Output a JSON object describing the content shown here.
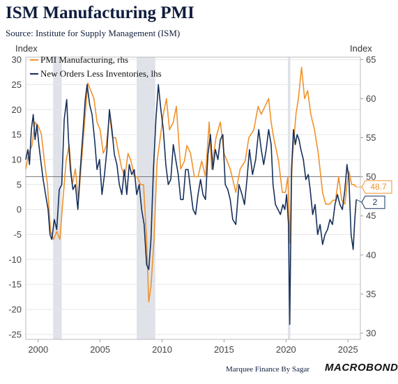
{
  "title": "ISM Manufacturing PMI",
  "subtitle": "Source: Institute for Supply Management (ISM)",
  "footer": {
    "credit": "Marquee Finance By Sagar",
    "brand": "MACROBOND"
  },
  "chart_data": {
    "type": "line",
    "left_axis": {
      "label": "Index",
      "range": [
        -26,
        30.5
      ],
      "ticks": [
        -25,
        -20,
        -15,
        -10,
        -5,
        0,
        5,
        10,
        15,
        20,
        25,
        30
      ]
    },
    "right_axis": {
      "label": "Index",
      "range": [
        29.2,
        65.3
      ],
      "ticks": [
        30,
        35,
        40,
        45,
        50,
        55,
        60,
        65
      ]
    },
    "x_axis": {
      "range": [
        1999.0,
        2026.0
      ],
      "ticks": [
        2000,
        2005,
        2010,
        2015,
        2020,
        2025
      ]
    },
    "reference_line": {
      "axis": "right",
      "value": 50
    },
    "recessions": [
      [
        2001.2,
        2001.9
      ],
      [
        2007.95,
        2009.45
      ],
      [
        2020.15,
        2020.35
      ]
    ],
    "colors": {
      "pmi": "#f0922b",
      "new_orders": "#16305c",
      "recession": "#dfe2e8"
    },
    "legend": [
      "PMI Manufacturing, rhs",
      "New Orders Less Inventories, lhs"
    ],
    "series": [
      {
        "name": "PMI Manufacturing, rhs",
        "axis": "right",
        "points": [
          [
            1999.0,
            51
          ],
          [
            1999.25,
            53
          ],
          [
            1999.5,
            54
          ],
          [
            1999.75,
            57
          ],
          [
            2000.0,
            56.5
          ],
          [
            2000.25,
            55.5
          ],
          [
            2000.5,
            52
          ],
          [
            2000.75,
            49
          ],
          [
            2001.0,
            43
          ],
          [
            2001.25,
            42
          ],
          [
            2001.5,
            43
          ],
          [
            2001.75,
            42
          ],
          [
            2002.0,
            47
          ],
          [
            2002.25,
            52
          ],
          [
            2002.5,
            54
          ],
          [
            2002.75,
            49
          ],
          [
            2003.0,
            51
          ],
          [
            2003.25,
            47
          ],
          [
            2003.5,
            52
          ],
          [
            2003.75,
            57
          ],
          [
            2004.0,
            62
          ],
          [
            2004.25,
            61
          ],
          [
            2004.5,
            60
          ],
          [
            2004.75,
            57
          ],
          [
            2005.0,
            56
          ],
          [
            2005.25,
            53
          ],
          [
            2005.5,
            54
          ],
          [
            2005.75,
            58
          ],
          [
            2006.0,
            55
          ],
          [
            2006.25,
            55
          ],
          [
            2006.5,
            53
          ],
          [
            2006.75,
            51
          ],
          [
            2007.0,
            50
          ],
          [
            2007.25,
            53
          ],
          [
            2007.5,
            52
          ],
          [
            2007.75,
            50
          ],
          [
            2008.0,
            50
          ],
          [
            2008.25,
            49
          ],
          [
            2008.5,
            49
          ],
          [
            2008.75,
            42
          ],
          [
            2008.92,
            34
          ],
          [
            2009.1,
            36
          ],
          [
            2009.35,
            42
          ],
          [
            2009.6,
            52
          ],
          [
            2009.85,
            55
          ],
          [
            2010.1,
            58
          ],
          [
            2010.35,
            60
          ],
          [
            2010.6,
            56
          ],
          [
            2010.9,
            57
          ],
          [
            2011.15,
            59
          ],
          [
            2011.5,
            51
          ],
          [
            2011.8,
            52
          ],
          [
            2012.0,
            54
          ],
          [
            2012.3,
            53
          ],
          [
            2012.6,
            50
          ],
          [
            2012.9,
            50
          ],
          [
            2013.2,
            52
          ],
          [
            2013.5,
            50
          ],
          [
            2013.8,
            57
          ],
          [
            2014.0,
            51
          ],
          [
            2014.35,
            55
          ],
          [
            2014.7,
            57
          ],
          [
            2015.0,
            53
          ],
          [
            2015.5,
            51
          ],
          [
            2015.95,
            48
          ],
          [
            2016.3,
            51
          ],
          [
            2016.7,
            52
          ],
          [
            2017.0,
            55
          ],
          [
            2017.4,
            56
          ],
          [
            2017.75,
            59
          ],
          [
            2018.0,
            58
          ],
          [
            2018.3,
            59
          ],
          [
            2018.6,
            60
          ],
          [
            2018.8,
            57
          ],
          [
            2019.0,
            55
          ],
          [
            2019.4,
            52
          ],
          [
            2019.7,
            48
          ],
          [
            2019.95,
            48
          ],
          [
            2020.15,
            50
          ],
          [
            2020.3,
            41.5
          ],
          [
            2020.5,
            52
          ],
          [
            2020.8,
            58
          ],
          [
            2021.0,
            60
          ],
          [
            2021.25,
            64
          ],
          [
            2021.5,
            60
          ],
          [
            2021.75,
            61
          ],
          [
            2022.0,
            58
          ],
          [
            2022.3,
            56
          ],
          [
            2022.6,
            53
          ],
          [
            2022.95,
            48
          ],
          [
            2023.2,
            46.5
          ],
          [
            2023.5,
            46.5
          ],
          [
            2023.8,
            47
          ],
          [
            2024.0,
            47
          ],
          [
            2024.25,
            50
          ],
          [
            2024.5,
            47
          ],
          [
            2024.75,
            46.5
          ],
          [
            2024.92,
            49
          ],
          [
            2025.08,
            50.7
          ],
          [
            2025.3,
            49
          ],
          [
            2025.5,
            49
          ],
          [
            2025.67,
            48.7
          ]
        ]
      },
      {
        "name": "New Orders Less Inventories, lhs",
        "axis": "left",
        "points": [
          [
            1999.0,
            10
          ],
          [
            1999.17,
            12
          ],
          [
            1999.3,
            9
          ],
          [
            1999.45,
            16
          ],
          [
            1999.6,
            19
          ],
          [
            1999.75,
            14
          ],
          [
            1999.9,
            17
          ],
          [
            2000.05,
            13
          ],
          [
            2000.2,
            10
          ],
          [
            2000.4,
            6
          ],
          [
            2000.6,
            3
          ],
          [
            2000.8,
            0
          ],
          [
            2000.95,
            -5
          ],
          [
            2001.1,
            -6
          ],
          [
            2001.3,
            -2
          ],
          [
            2001.5,
            -4
          ],
          [
            2001.7,
            4
          ],
          [
            2001.9,
            5
          ],
          [
            2002.1,
            18
          ],
          [
            2002.3,
            22
          ],
          [
            2002.45,
            14
          ],
          [
            2002.6,
            8
          ],
          [
            2002.8,
            4
          ],
          [
            2003.0,
            5
          ],
          [
            2003.2,
            0
          ],
          [
            2003.4,
            8
          ],
          [
            2003.6,
            15
          ],
          [
            2003.8,
            22
          ],
          [
            2003.95,
            25
          ],
          [
            2004.15,
            21
          ],
          [
            2004.35,
            19
          ],
          [
            2004.55,
            14
          ],
          [
            2004.75,
            8
          ],
          [
            2004.95,
            10
          ],
          [
            2005.15,
            3
          ],
          [
            2005.35,
            7
          ],
          [
            2005.55,
            12
          ],
          [
            2005.75,
            20
          ],
          [
            2005.95,
            16
          ],
          [
            2006.15,
            11
          ],
          [
            2006.35,
            9
          ],
          [
            2006.55,
            5
          ],
          [
            2006.75,
            3
          ],
          [
            2006.95,
            8
          ],
          [
            2007.15,
            3
          ],
          [
            2007.35,
            9
          ],
          [
            2007.55,
            7
          ],
          [
            2007.75,
            8
          ],
          [
            2007.95,
            3
          ],
          [
            2008.15,
            5
          ],
          [
            2008.35,
            0
          ],
          [
            2008.55,
            -3
          ],
          [
            2008.75,
            -11
          ],
          [
            2008.92,
            -12
          ],
          [
            2009.1,
            -6
          ],
          [
            2009.3,
            8
          ],
          [
            2009.5,
            18
          ],
          [
            2009.7,
            25
          ],
          [
            2009.9,
            20
          ],
          [
            2010.1,
            16
          ],
          [
            2010.3,
            9
          ],
          [
            2010.5,
            5
          ],
          [
            2010.7,
            6
          ],
          [
            2010.9,
            13
          ],
          [
            2011.1,
            10
          ],
          [
            2011.3,
            7
          ],
          [
            2011.5,
            2
          ],
          [
            2011.7,
            2
          ],
          [
            2011.9,
            8
          ],
          [
            2012.1,
            8
          ],
          [
            2012.3,
            4
          ],
          [
            2012.5,
            0
          ],
          [
            2012.7,
            -1
          ],
          [
            2012.9,
            3
          ],
          [
            2013.1,
            6
          ],
          [
            2013.3,
            3
          ],
          [
            2013.5,
            2
          ],
          [
            2013.7,
            11
          ],
          [
            2013.9,
            15
          ],
          [
            2014.1,
            8
          ],
          [
            2014.3,
            12
          ],
          [
            2014.5,
            10
          ],
          [
            2014.7,
            14
          ],
          [
            2014.9,
            15
          ],
          [
            2015.1,
            5
          ],
          [
            2015.3,
            4
          ],
          [
            2015.5,
            2
          ],
          [
            2015.7,
            -2
          ],
          [
            2015.95,
            -3
          ],
          [
            2016.2,
            5
          ],
          [
            2016.45,
            3
          ],
          [
            2016.65,
            1
          ],
          [
            2016.85,
            6
          ],
          [
            2017.05,
            12
          ],
          [
            2017.3,
            7
          ],
          [
            2017.55,
            10
          ],
          [
            2017.8,
            16
          ],
          [
            2018.0,
            12
          ],
          [
            2018.2,
            9
          ],
          [
            2018.4,
            12
          ],
          [
            2018.6,
            16
          ],
          [
            2018.8,
            13
          ],
          [
            2018.95,
            5
          ],
          [
            2019.15,
            1
          ],
          [
            2019.35,
            0
          ],
          [
            2019.55,
            -1
          ],
          [
            2019.75,
            1
          ],
          [
            2019.9,
            0
          ],
          [
            2020.05,
            3
          ],
          [
            2020.2,
            -3
          ],
          [
            2020.3,
            -23
          ],
          [
            2020.45,
            8
          ],
          [
            2020.6,
            16
          ],
          [
            2020.75,
            13
          ],
          [
            2020.9,
            15
          ],
          [
            2021.05,
            14
          ],
          [
            2021.2,
            12
          ],
          [
            2021.4,
            10
          ],
          [
            2021.6,
            6
          ],
          [
            2021.8,
            7
          ],
          [
            2021.95,
            4
          ],
          [
            2022.15,
            -1
          ],
          [
            2022.35,
            1
          ],
          [
            2022.55,
            -5
          ],
          [
            2022.75,
            -3
          ],
          [
            2022.95,
            -7
          ],
          [
            2023.15,
            -5
          ],
          [
            2023.35,
            -4
          ],
          [
            2023.55,
            -2
          ],
          [
            2023.75,
            -3
          ],
          [
            2023.95,
            1
          ],
          [
            2024.15,
            3
          ],
          [
            2024.35,
            1
          ],
          [
            2024.55,
            0
          ],
          [
            2024.75,
            4
          ],
          [
            2024.92,
            9
          ],
          [
            2025.08,
            6
          ],
          [
            2025.25,
            -5
          ],
          [
            2025.42,
            -8
          ],
          [
            2025.55,
            -2
          ],
          [
            2025.67,
            2
          ]
        ]
      }
    ],
    "end_labels": {
      "pmi": "48.7",
      "new_orders": "2"
    }
  }
}
